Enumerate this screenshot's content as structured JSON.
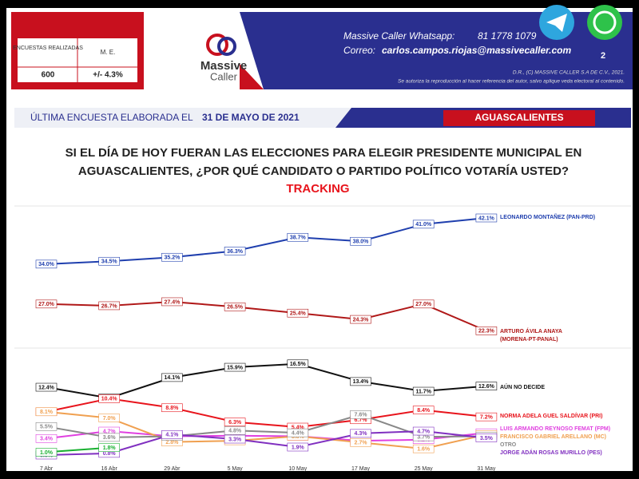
{
  "header": {
    "surveys_label": "ENCUESTAS REALIZADAS",
    "me_label": "M. E.",
    "surveys": "600",
    "me": "+/- 4.3%",
    "logo_top": "Massive",
    "logo_bottom": "Caller",
    "whatsapp_label": "Massive Caller Whatsapp:",
    "whatsapp": "81 1778 1079",
    "email_label": "Correo:",
    "email": "carlos.campos.riojas@massivecaller.com",
    "page": "2",
    "copyright": "D.R., (C) MASSIVE CALLER S.A DE C.V., 2021.",
    "notice": "Se autoriza la reproducción al hacer referencia del autor, salvo aplique veda electoral al contenido."
  },
  "banner": {
    "prefix": "ÚLTIMA ENCUESTA ELABORADA EL",
    "date": "31 DE MAYO DE 2021",
    "state": "AGUASCALIENTES"
  },
  "chart_data": {
    "type": "line",
    "title": "SI EL DÍA DE HOY FUERAN LAS ELECCIONES PARA ELEGIR PRESIDENTE MUNICIPAL EN AGUASCALIENTES, ¿POR QUÉ CANDIDATO O PARTIDO POLÍTICO VOTARÍA USTED?",
    "subtitle": "TRACKING",
    "categories": [
      "7 Abr",
      "16 Abr",
      "29 Abr",
      "5 May",
      "10 May",
      "17 May",
      "25 May",
      "31 May"
    ],
    "series": [
      {
        "name": "LEONARDO MONTAÑEZ (PAN-PRD)",
        "color": "#1f3fae",
        "values": [
          34.0,
          34.5,
          35.2,
          36.3,
          38.7,
          38.0,
          41.0,
          42.1
        ],
        "value_labels": [
          "34.0%",
          "34.5%",
          "35.2%",
          "36.3%",
          "38.7%",
          "38.0%",
          "41.0%",
          "42.1%"
        ]
      },
      {
        "name": "ARTURO ÁVILA ANAYA (MORENA-PT-PANAL)",
        "color": "#b01818",
        "values": [
          27.0,
          26.7,
          27.4,
          26.5,
          25.4,
          24.3,
          27.0,
          22.3
        ],
        "value_labels": [
          "27.0%",
          "26.7%",
          "27.4%",
          "26.5%",
          "25.4%",
          "24.3%",
          "27.0%",
          "22.3%"
        ]
      },
      {
        "name": "AÚN NO DECIDE",
        "color": "#111111",
        "values": [
          12.4,
          10.5,
          14.1,
          15.9,
          16.5,
          13.4,
          11.7,
          12.6
        ],
        "value_labels": [
          "12.4%",
          "10.5%",
          "14.1%",
          "15.9%",
          "16.5%",
          "13.4%",
          "11.7%",
          "12.6%"
        ]
      },
      {
        "name": "NORMA ADELA GUEL SALDÍVAR (PRI)",
        "color": "#e8141c",
        "values": [
          8.1,
          10.4,
          8.8,
          6.3,
          5.4,
          6.7,
          8.4,
          7.2
        ],
        "value_labels": [
          "8.1%",
          "10.4%",
          "8.8%",
          "6.3%",
          "5.4%",
          "6.7%",
          "8.4%",
          "7.2%"
        ]
      },
      {
        "name": "LUIS ARMANDO REYNOSO FEMAT (FPM)",
        "color": "#e040e0",
        "values": [
          3.4,
          4.7,
          3.8,
          3.9,
          3.8,
          3.0,
          3.2,
          4.4
        ],
        "value_labels": [
          "3.4%",
          "4.7%",
          "3.8%",
          "3.9%",
          "3.8%",
          "3.0%",
          "3.2%",
          "4.4%"
        ]
      },
      {
        "name": "FRANCISCO GABRIEL ARELLANO (MC)",
        "color": "#f0a050",
        "values": [
          8.1,
          7.0,
          2.8,
          3.0,
          3.8,
          2.7,
          1.6,
          4.1
        ],
        "value_labels": [
          "8.1%",
          "7.0%",
          "2.8%",
          "3.0%",
          "3.8%",
          "2.7%",
          "1.6%",
          "4.1%"
        ]
      },
      {
        "name": "OTRO",
        "color": "#888888",
        "values": [
          5.5,
          3.6,
          3.8,
          4.8,
          4.4,
          7.6,
          3.7,
          3.8
        ],
        "value_labels": [
          "5.5%",
          "3.6%",
          "3.8%",
          "4.8%",
          "4.4%",
          "7.6%",
          "3.7%",
          "3.8%"
        ]
      },
      {
        "name": "JORGE ADÁN ROSAS MURILLO (PES)",
        "color": "#8030c0",
        "values": [
          0.5,
          0.8,
          4.1,
          3.3,
          1.9,
          4.3,
          4.7,
          3.5
        ],
        "value_labels": [
          "0.5%",
          "0.8%",
          "4.1%",
          "3.3%",
          "1.9%",
          "4.3%",
          "4.7%",
          "3.5%"
        ]
      },
      {
        "color": "#18b030",
        "values": [
          1.0,
          1.8,
          null,
          null,
          null,
          null,
          null,
          null
        ],
        "value_labels": [
          "1.0%",
          "1.8%",
          null,
          null,
          null,
          null,
          null,
          null
        ]
      }
    ]
  }
}
